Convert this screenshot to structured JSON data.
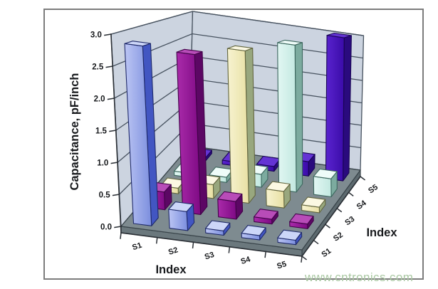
{
  "watermark": {
    "text": "www.cntronics.com",
    "color": "#abc9a4"
  },
  "chart_data": {
    "type": "bar",
    "subtype": "3d-bar-matrix",
    "title": "",
    "xlabel": "Index",
    "depth_label": "Index",
    "ylabel": "Capacitance, pF/inch",
    "categories": [
      "S1",
      "S2",
      "S3",
      "S4",
      "S5"
    ],
    "depth_categories": [
      "S1",
      "S2",
      "S3",
      "S4",
      "S5"
    ],
    "ylim": [
      0.0,
      3.0
    ],
    "ytick_step": 0.5,
    "ytick_labels": [
      "0.0",
      "0.5",
      "1.0",
      "1.5",
      "2.0",
      "2.5",
      "3.0"
    ],
    "grid": "walls-horizontal",
    "legend": "none",
    "series": [
      {
        "name": "S1",
        "color": "#a9b6ee",
        "values": [
          2.85,
          0.3,
          0.07,
          0.07,
          0.07
        ]
      },
      {
        "name": "S2",
        "color": "#97139b",
        "values": [
          0.3,
          2.7,
          0.3,
          0.08,
          0.08
        ]
      },
      {
        "name": "S3",
        "color": "#f3efc4",
        "values": [
          0.1,
          0.25,
          2.75,
          0.3,
          0.1
        ]
      },
      {
        "name": "S4",
        "color": "#d9f3ef",
        "values": [
          0.08,
          0.1,
          0.25,
          2.85,
          0.35
        ]
      },
      {
        "name": "S5",
        "color": "#4916bd",
        "values": [
          0.07,
          0.08,
          0.1,
          0.3,
          3.0
        ]
      }
    ],
    "palettes": [
      {
        "front_light": "#bcc6f4",
        "front_dark": "#7b8ede",
        "side": "#4256c2",
        "top": "#ccd6f8",
        "stroke": "#1f2a6a"
      },
      {
        "front_light": "#aa2baa",
        "front_dark": "#7e0a84",
        "side": "#5c0764",
        "top": "#b84cb8",
        "stroke": "#420349"
      },
      {
        "front_light": "#f7f3d0",
        "front_dark": "#e8e0a4",
        "side": "#98a77e",
        "top": "#fbf8e2",
        "stroke": "#63663f"
      },
      {
        "front_light": "#e2f7f3",
        "front_dark": "#c2e8e0",
        "side": "#7cab9f",
        "top": "#effcf9",
        "stroke": "#3d685f"
      },
      {
        "front_light": "#5a24cf",
        "front_dark": "#3a0ba8",
        "side": "#2a0a7e",
        "top": "#6434d4",
        "stroke": "#190555"
      }
    ],
    "colors": {
      "wall": "#ccd4e0",
      "wall_edge": "#47525f",
      "grid_line": "#47525f",
      "floor_top": "#7e8b90",
      "slab_front": "#6b787d",
      "slab_right": "#5d6a6f",
      "floor_edge": "#39444a",
      "axis": "#2a2f35",
      "label": "#17191c"
    }
  }
}
